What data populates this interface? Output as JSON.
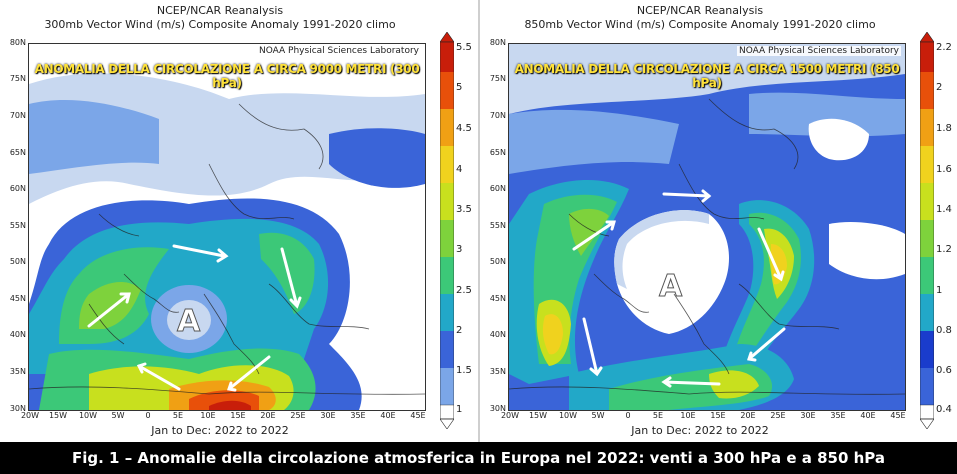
{
  "panels": [
    {
      "title_line1": "NCEP/NCAR Reanalysis",
      "title_line2": "300mb Vector Wind (m/s) Composite Anomaly 1991-2020 climo",
      "credit": "NOAA Physical Sciences Laboratory",
      "overlay_label": "ANOMALIA DELLA CIRCOLAZIONE A CIRCA 9000 METRI (300 hPa)",
      "date_range": "Jan to Dec: 2022 to 2022",
      "anticyclone_marker": "A",
      "colorbar_ticks": [
        "5.5",
        "5",
        "4.5",
        "4",
        "3.5",
        "3",
        "2.5",
        "2",
        "1.5",
        "1"
      ]
    },
    {
      "title_line1": "NCEP/NCAR Reanalysis",
      "title_line2": "850mb Vector Wind (m/s) Composite Anomaly 1991-2020 climo",
      "credit": "NOAA Physical Sciences Laboratory",
      "overlay_label": "ANOMALIA DELLA CIRCOLAZIONE A CIRCA 1500 METRI (850 hPa)",
      "date_range": "Jan to Dec: 2022 to 2022",
      "anticyclone_marker": "A",
      "colorbar_ticks": [
        "2.2",
        "2",
        "1.8",
        "1.6",
        "1.4",
        "1.2",
        "1",
        "0.8",
        "0.6",
        "0.4"
      ]
    }
  ],
  "lat_labels": [
    "80N",
    "75N",
    "70N",
    "65N",
    "60N",
    "55N",
    "50N",
    "45N",
    "40N",
    "35N",
    "30N"
  ],
  "lon_labels": [
    "20W",
    "15W",
    "10W",
    "5W",
    "0",
    "5E",
    "10E",
    "15E",
    "20E",
    "25E",
    "30E",
    "35E",
    "40E",
    "45E"
  ],
  "caption": "Fig. 1 – Anomalie della circolazione atmosferica in Europa nel 2022: venti a 300 hPa e a 850 hPa",
  "colors": {
    "scale": [
      "#ffffff",
      "#c8d8f0",
      "#7ba6e8",
      "#3a64d8",
      "#1a3ccc",
      "#22a8c8",
      "#3cc878",
      "#7ed23c",
      "#c8e01e",
      "#f0d21e",
      "#f0a014",
      "#e8500a",
      "#c81e0a"
    ]
  }
}
